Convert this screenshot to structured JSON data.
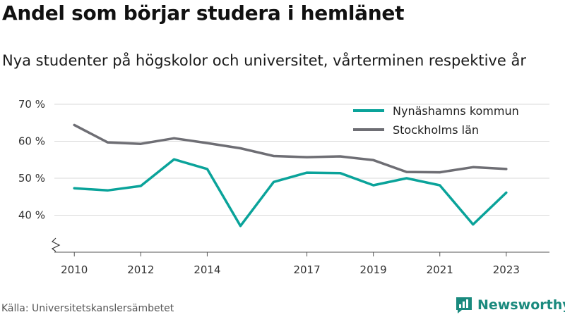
{
  "title": "Andel som börjar studera i hemlänet",
  "subtitle": "Nya studenter på högskolor och universitet, vårterminen respektive år",
  "source": "Källa: Universitetskanslersämbetet",
  "brand": {
    "name": "Newsworthy",
    "color": "#1a8a7e"
  },
  "chart_data": {
    "type": "line",
    "title": "Andel som börjar studera i hemlänet",
    "xlabel": "",
    "ylabel": "",
    "x": [
      2010,
      2011,
      2012,
      2013,
      2014,
      2015,
      2016,
      2017,
      2018,
      2019,
      2020,
      2021,
      2022,
      2023
    ],
    "x_ticks": [
      "2010",
      "2012",
      "2014",
      "2017",
      "2019",
      "2021",
      "2023"
    ],
    "y_ticks": [
      "40 %",
      "50 %",
      "60 %",
      "70 %"
    ],
    "ylim": [
      30,
      70
    ],
    "axis_break": true,
    "grid": true,
    "legend_position": "top-right",
    "series": [
      {
        "name": "Nynäshamns kommun",
        "color": "#0aa39a",
        "values": [
          47.3,
          46.7,
          47.9,
          55.1,
          52.5,
          37.1,
          49.0,
          51.5,
          51.4,
          48.1,
          50.0,
          48.1,
          37.5,
          46.1
        ]
      },
      {
        "name": "Stockholms län",
        "color": "#6e6e74",
        "values": [
          64.4,
          59.7,
          59.3,
          60.8,
          59.5,
          58.1,
          56.0,
          55.7,
          55.9,
          54.9,
          51.7,
          51.6,
          53.0,
          52.5
        ]
      }
    ]
  }
}
